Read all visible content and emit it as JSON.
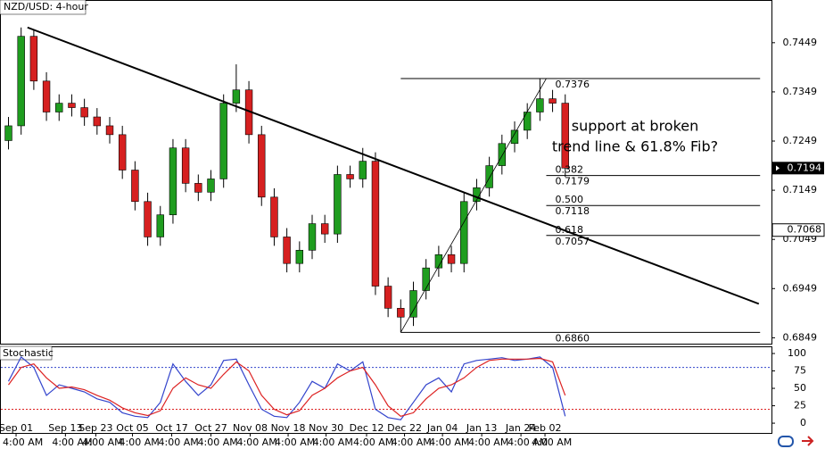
{
  "chart_data": {
    "type": "candlestick",
    "title": "NZD/USD: 4-hour",
    "up_color": "#1f9d1f",
    "down_color": "#d62020",
    "xlim": [
      -0.6,
      60.3
    ],
    "ylim": [
      0.6837,
      0.7534
    ],
    "yticks": [
      0.7449,
      0.7349,
      0.7249,
      0.7149,
      0.7049,
      0.6949,
      0.6849
    ],
    "xticks": [
      {
        "value": 0.6,
        "label": "Sep 01"
      },
      {
        "value": 4.5,
        "label": "Sep 13"
      },
      {
        "value": 6.9,
        "label": "Sep 23"
      },
      {
        "value": 9.8,
        "label": "Oct 05"
      },
      {
        "value": 12.9,
        "label": "Oct 17"
      },
      {
        "value": 16,
        "label": "Oct 27"
      },
      {
        "value": 19.1,
        "label": "Nov 08"
      },
      {
        "value": 22.1,
        "label": "Nov 18"
      },
      {
        "value": 25.1,
        "label": "Nov 30"
      },
      {
        "value": 28.3,
        "label": "Dec 12"
      },
      {
        "value": 31.3,
        "label": "Dec 22"
      },
      {
        "value": 34.3,
        "label": "Jan 04"
      },
      {
        "value": 37.4,
        "label": "Jan 13"
      },
      {
        "value": 40.5,
        "label": "Jan 24"
      },
      {
        "value": 42.4,
        "label": "Feb 02"
      }
    ],
    "xtick_times": [
      "4:00 AM",
      "4:00 AM",
      "4:00 AM",
      "4:00 AM",
      "4:00 AM",
      "4:00 AM",
      "4:00 AM",
      "4:00 AM",
      "4:00 AM",
      "4:00 AM",
      "4:00 AM",
      "4:00 AM",
      "4:00 AM",
      "4:00 AM",
      "4:00 AM"
    ],
    "open": [
      0.725,
      0.728,
      0.7462,
      0.7371,
      0.7308,
      0.7326,
      0.7317,
      0.7298,
      0.728,
      0.7262,
      0.719,
      0.7126,
      0.7054,
      0.7099,
      0.7235,
      0.7163,
      0.7145,
      0.7172,
      0.7326,
      0.7353,
      0.7262,
      0.7135,
      0.7054,
      0.7,
      0.7027,
      0.7081,
      0.706,
      0.7181,
      0.7172,
      0.7208,
      0.6954,
      0.6909,
      0.6891,
      0.6945,
      0.6991,
      0.7018,
      0.7,
      0.7126,
      0.7154,
      0.7199,
      0.7244,
      0.7271,
      0.7308,
      0.7335,
      0.7326
    ],
    "high": [
      0.7298,
      0.748,
      0.7475,
      0.7389,
      0.7344,
      0.7344,
      0.7335,
      0.7316,
      0.7298,
      0.728,
      0.7208,
      0.7144,
      0.7117,
      0.7253,
      0.7253,
      0.7181,
      0.719,
      0.7344,
      0.7405,
      0.7371,
      0.728,
      0.7153,
      0.7072,
      0.7045,
      0.7099,
      0.7099,
      0.7199,
      0.7199,
      0.7235,
      0.7226,
      0.6972,
      0.6927,
      0.6963,
      0.7009,
      0.7036,
      0.7036,
      0.7144,
      0.7172,
      0.7217,
      0.7262,
      0.7289,
      0.7326,
      0.7376,
      0.7353,
      0.7344
    ],
    "low": [
      0.7232,
      0.7262,
      0.7353,
      0.729,
      0.729,
      0.7299,
      0.728,
      0.7262,
      0.7244,
      0.7172,
      0.7108,
      0.7036,
      0.7036,
      0.7081,
      0.7145,
      0.7127,
      0.7127,
      0.7154,
      0.7308,
      0.7244,
      0.7117,
      0.7036,
      0.6982,
      0.6982,
      0.7009,
      0.7042,
      0.7042,
      0.7154,
      0.7154,
      0.6936,
      0.6891,
      0.686,
      0.6873,
      0.6927,
      0.6973,
      0.6982,
      0.6982,
      0.7108,
      0.7136,
      0.7181,
      0.7226,
      0.7253,
      0.729,
      0.7308,
      0.7176
    ],
    "close": [
      0.728,
      0.7462,
      0.7371,
      0.7308,
      0.7326,
      0.7317,
      0.7298,
      0.728,
      0.7262,
      0.719,
      0.7126,
      0.7054,
      0.7099,
      0.7235,
      0.7163,
      0.7145,
      0.7172,
      0.7326,
      0.7353,
      0.7262,
      0.7135,
      0.7054,
      0.7,
      0.7027,
      0.7081,
      0.706,
      0.7181,
      0.7172,
      0.7208,
      0.6954,
      0.6909,
      0.6891,
      0.6945,
      0.6991,
      0.7018,
      0.7,
      0.7126,
      0.7154,
      0.7199,
      0.7244,
      0.7271,
      0.7308,
      0.7335,
      0.7326,
      0.7194
    ],
    "trend_line": {
      "x": [
        1.5,
        59.3
      ],
      "y": [
        0.748,
        0.6918
      ],
      "color": "#000000"
    },
    "fibonacci": {
      "from": 31,
      "to": 59.4,
      "levels_from": 42.5,
      "high": 0.7376,
      "low": {
        "value": 0.686,
        "label": "0.6860"
      },
      "levels": [
        {
          "ratio": "0.382",
          "price": 0.7179
        },
        {
          "ratio": "0.500",
          "price": 0.7118
        },
        {
          "ratio": "0.618",
          "price": 0.7057
        }
      ]
    },
    "price_tags": [
      {
        "value": 0.7194,
        "style": "dark"
      },
      {
        "value": 0.7068,
        "style": "light"
      }
    ],
    "annotation": [
      "support at broken",
      "trend line & 61.8% Fib?"
    ],
    "indicator": {
      "title": "Stochastic",
      "ylim": [
        -14,
        109
      ],
      "yticks": [
        100,
        75,
        50,
        25,
        0
      ],
      "levels": [
        {
          "value": 80,
          "color": "#3344cc"
        },
        {
          "value": 20,
          "color": "#dd2222"
        }
      ],
      "series": [
        {
          "color": "#3344cc",
          "values": [
            60,
            95,
            80,
            40,
            55,
            50,
            45,
            35,
            30,
            15,
            10,
            8,
            30,
            85,
            60,
            40,
            55,
            90,
            92,
            55,
            20,
            10,
            8,
            30,
            60,
            50,
            85,
            75,
            88,
            20,
            8,
            5,
            30,
            55,
            65,
            45,
            85,
            90,
            92,
            94,
            90,
            92,
            95,
            80,
            10
          ]
        },
        {
          "color": "#dd2222",
          "values": [
            55,
            80,
            85,
            65,
            50,
            52,
            48,
            40,
            33,
            22,
            15,
            11,
            18,
            50,
            65,
            55,
            50,
            70,
            88,
            75,
            40,
            20,
            12,
            18,
            40,
            50,
            65,
            75,
            80,
            55,
            25,
            10,
            15,
            35,
            50,
            55,
            65,
            80,
            90,
            92,
            92,
            92,
            93,
            88,
            40
          ]
        }
      ]
    }
  }
}
